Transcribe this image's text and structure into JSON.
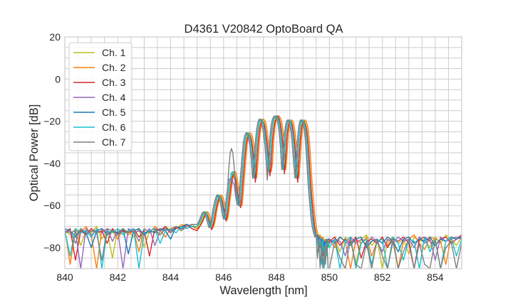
{
  "chart_data": {
    "type": "line",
    "title": "D4361 V20842 OptoBoard QA",
    "xlabel": "Wavelength [nm]",
    "ylabel": "Optical Power [dB]",
    "xlim": [
      840,
      855
    ],
    "ylim": [
      -90,
      20
    ],
    "xticks": [
      "840",
      "842",
      "844",
      "846",
      "848",
      "850",
      "852",
      "854"
    ],
    "xtick_values": [
      840,
      842,
      844,
      846,
      848,
      850,
      852,
      854
    ],
    "yticks": [
      "20",
      "0",
      "−20",
      "−40",
      "−60",
      "−80"
    ],
    "ytick_values": [
      20,
      0,
      -20,
      -40,
      -60,
      -80
    ],
    "grid": true,
    "grid_color": "#cccccc",
    "legend_position": "upper-left",
    "x": [
      840,
      840.2,
      840.4,
      840.6,
      840.8,
      841,
      841.2,
      841.4,
      841.6,
      841.8,
      842,
      842.2,
      842.4,
      842.6,
      842.8,
      843,
      843.2,
      843.4,
      843.6,
      843.8,
      844,
      844.2,
      844.4,
      844.6,
      844.8,
      845,
      845.05,
      845.1,
      845.15,
      845.2,
      845.25,
      845.3,
      845.35,
      845.4,
      845.45,
      845.5,
      845.55,
      845.6,
      845.65,
      845.7,
      845.75,
      845.8,
      845.85,
      845.9,
      845.95,
      846,
      846.05,
      846.1,
      846.15,
      846.2,
      846.25,
      846.3,
      846.35,
      846.4,
      846.45,
      846.5,
      846.55,
      846.6,
      846.65,
      846.7,
      846.75,
      846.8,
      846.85,
      846.9,
      846.95,
      847,
      847.05,
      847.1,
      847.15,
      847.2,
      847.25,
      847.3,
      847.35,
      847.4,
      847.45,
      847.5,
      847.55,
      847.6,
      847.65,
      847.7,
      847.75,
      847.8,
      847.85,
      847.9,
      847.95,
      848,
      848.05,
      848.1,
      848.15,
      848.2,
      848.25,
      848.3,
      848.35,
      848.4,
      848.45,
      848.5,
      848.55,
      848.6,
      848.65,
      848.7,
      848.75,
      848.8,
      848.85,
      848.9,
      848.95,
      849,
      849.05,
      849.1,
      849.15,
      849.2,
      849.25,
      849.3,
      849.35,
      849.4,
      849.45,
      849.5,
      849.55,
      849.6,
      849.65,
      849.7,
      849.75,
      849.8,
      849.85,
      849.9,
      849.95,
      850,
      850.2,
      850.4,
      850.6,
      850.8,
      851,
      851.2,
      851.4,
      851.6,
      851.8,
      852,
      852.2,
      852.4,
      852.6,
      852.8,
      853,
      853.2,
      853.4,
      853.6,
      853.8,
      854,
      854.2,
      854.4,
      854.6,
      854.8,
      855
    ],
    "series": [
      {
        "name": "Ch. 1",
        "color": "#bcbd22",
        "y": [
          -72,
          -74,
          -71,
          -79,
          -72,
          -73,
          -70,
          -76,
          -72,
          -85,
          -71,
          -73,
          -72,
          -75,
          -71,
          -80,
          -72,
          -71,
          -74,
          -70,
          -72,
          -71,
          -69,
          -70,
          -69,
          -71,
          -70,
          -69,
          -68,
          -66.5,
          -65,
          -63.5,
          -63,
          -64,
          -66,
          -68.5,
          -70.5,
          -69,
          -66,
          -62,
          -59,
          -56.5,
          -55,
          -55.5,
          -57,
          -60,
          -64,
          -66.5,
          -63,
          -57,
          -52,
          -47.5,
          -44.5,
          -44,
          -46,
          -50,
          -55,
          -59,
          -60,
          -53,
          -45,
          -37,
          -30,
          -27,
          -25.5,
          -26,
          -28,
          -32,
          -38,
          -47,
          -40,
          -30,
          -24,
          -20.5,
          -19,
          -19.5,
          -21,
          -25,
          -30,
          -37,
          -44,
          -40,
          -28,
          -22,
          -19,
          -17.8,
          -17.5,
          -18.5,
          -20.5,
          -25,
          -32,
          -43,
          -36,
          -26,
          -21.5,
          -19.5,
          -19.5,
          -21,
          -25,
          -31,
          -40,
          -47,
          -38,
          -28,
          -22,
          -19.5,
          -19.5,
          -21,
          -24,
          -30,
          -40,
          -50,
          -58,
          -65,
          -70,
          -73,
          -75,
          -74,
          -76,
          -75,
          -78,
          -76,
          -79,
          -77,
          -80,
          -78,
          -76,
          -82,
          -75,
          -77,
          -88,
          -76,
          -74,
          -79,
          -76,
          -90,
          -77,
          -75,
          -78,
          -76,
          -83,
          -75,
          -77,
          -76,
          -80,
          -75,
          -78,
          -74,
          -76,
          -79,
          -75
        ]
      },
      {
        "name": "Ch. 2",
        "color": "#ff7f0e",
        "y": [
          -71,
          -88,
          -72,
          -73,
          -70,
          -74,
          -90,
          -71,
          -73,
          -72,
          -76,
          -71,
          -74,
          -72,
          -82,
          -71,
          -73,
          -70,
          -72,
          -75,
          -71,
          -70,
          -72,
          -69,
          -70,
          -71,
          -70.5,
          -70,
          -69,
          -68,
          -66.5,
          -65,
          -63.5,
          -63,
          -64,
          -66,
          -68.5,
          -70.5,
          -69,
          -66,
          -62,
          -59,
          -56.5,
          -55,
          -55.5,
          -57,
          -60,
          -64,
          -66.5,
          -63,
          -57,
          -52,
          -47.5,
          -44.5,
          -44,
          -46,
          -50,
          -55,
          -59,
          -60,
          -53,
          -45,
          -37,
          -30,
          -27,
          -25.5,
          -26,
          -28,
          -32,
          -38,
          -47,
          -40,
          -30,
          -24,
          -20.5,
          -19,
          -19.5,
          -21,
          -25,
          -30,
          -37,
          -44,
          -40,
          -28,
          -22,
          -19,
          -17.8,
          -17.5,
          -18.5,
          -20.5,
          -25,
          -32,
          -43,
          -36,
          -26,
          -21.5,
          -19.5,
          -19.5,
          -21,
          -25,
          -31,
          -40,
          -47,
          -38,
          -28,
          -22,
          -19.5,
          -19.5,
          -21,
          -24,
          -30,
          -40,
          -50,
          -58,
          -65,
          -70,
          -73,
          -75,
          -74,
          -76,
          -75,
          -78,
          -76,
          -79,
          -77,
          -76,
          -80,
          -75,
          -77,
          -90,
          -76,
          -78,
          -75,
          -84,
          -77,
          -76,
          -79,
          -75,
          -90,
          -77,
          -76,
          -74,
          -78,
          -81,
          -75,
          -76,
          -77,
          -88,
          -75,
          -76,
          -74
        ]
      },
      {
        "name": "Ch. 3",
        "color": "#d62728",
        "y": [
          -73,
          -71,
          -86,
          -72,
          -74,
          -71,
          -73,
          -72,
          -78,
          -71,
          -74,
          -72,
          -73,
          -71,
          -75,
          -72,
          -84,
          -71,
          -72,
          -70,
          -73,
          -71,
          -70,
          -69,
          -71,
          -72,
          -71,
          -70,
          -69,
          -67.5,
          -66,
          -64.5,
          -64,
          -65,
          -67,
          -69.5,
          -71.5,
          -70,
          -67,
          -63,
          -60,
          -57.5,
          -56,
          -56.5,
          -58,
          -61,
          -65,
          -67.5,
          -64,
          -58,
          -53,
          -48.5,
          -45.5,
          -45,
          -47,
          -51,
          -56,
          -60,
          -61,
          -54,
          -46,
          -38,
          -31,
          -28,
          -26.5,
          -27,
          -29,
          -33,
          -39,
          -49,
          -41,
          -31,
          -25,
          -21.5,
          -20,
          -20.5,
          -22,
          -26,
          -31,
          -38,
          -46,
          -41,
          -29,
          -23,
          -20,
          -18.8,
          -17.5,
          -19,
          -21.5,
          -26,
          -33,
          -45,
          -37,
          -27,
          -22,
          -20.5,
          -20.5,
          -22,
          -26,
          -32,
          -42,
          -49,
          -39,
          -29,
          -23,
          -20.5,
          -20.5,
          -22,
          -25,
          -31,
          -41,
          -51,
          -59,
          -66,
          -71,
          -74,
          -77,
          -75,
          -80,
          -76,
          -84,
          -77,
          -82,
          -78,
          -79,
          -77,
          -75,
          -79,
          -76,
          -78,
          -75,
          -85,
          -77,
          -76,
          -78,
          -75,
          -80,
          -76,
          -77,
          -75,
          -78,
          -90,
          -76,
          -75,
          -77,
          -79,
          -76,
          -75,
          -78,
          -76,
          -74
        ]
      },
      {
        "name": "Ch. 4",
        "color": "#9467bd",
        "y": [
          -72,
          -73,
          -72,
          -90,
          -71,
          -74,
          -72,
          -73,
          -71,
          -77,
          -72,
          -90,
          -71,
          -73,
          -72,
          -74,
          -71,
          -79,
          -72,
          -71,
          -73,
          -70,
          -71,
          -70,
          -69,
          -69,
          -68,
          -66.5,
          -65,
          -63.5,
          -63,
          -64,
          -66,
          -68.5,
          -70.5,
          -69,
          -66,
          -62,
          -59,
          -56.5,
          -55,
          -55.5,
          -57,
          -60,
          -64,
          -66.5,
          -63,
          -57,
          -52,
          -47.5,
          -48,
          -47,
          -49,
          -50,
          -55,
          -59,
          -60,
          -53,
          -45,
          -37,
          -30,
          -27,
          -25.5,
          -26,
          -28,
          -32,
          -38,
          -47,
          -40,
          -30,
          -24,
          -20.5,
          -19,
          -19.5,
          -21,
          -25,
          -30,
          -37,
          -44,
          -40,
          -28,
          -22,
          -19,
          -17.8,
          -17.5,
          -18.5,
          -20.5,
          -25,
          -32,
          -43,
          -36,
          -26,
          -21.5,
          -19.5,
          -19.5,
          -21,
          -25,
          -31,
          -40,
          -47,
          -38,
          -28,
          -22,
          -19.5,
          -19.5,
          -21,
          -24,
          -30,
          -40,
          -50,
          -58,
          -65,
          -70,
          -73,
          -75,
          -74,
          -76,
          -75,
          -78,
          -76,
          -79,
          -77,
          -80,
          -76,
          -78,
          -78,
          -76,
          -77,
          -84,
          -75,
          -78,
          -76,
          -79,
          -75,
          -77,
          -82,
          -76,
          -78,
          -75,
          -77,
          -76,
          -80,
          -75,
          -78,
          -76,
          -86,
          -75,
          -77,
          -76,
          -75,
          -76
        ]
      },
      {
        "name": "Ch. 5",
        "color": "#1f77b4",
        "y": [
          -71,
          -72,
          -75,
          -71,
          -73,
          -80,
          -72,
          -71,
          -74,
          -72,
          -73,
          -71,
          -83,
          -72,
          -71,
          -74,
          -72,
          -73,
          -71,
          -72,
          -76,
          -70,
          -71,
          -69,
          -70,
          -70,
          -69,
          -68,
          -66.5,
          -65,
          -63.5,
          -63,
          -64,
          -66,
          -68.5,
          -70.5,
          -69,
          -66,
          -62,
          -59,
          -56.5,
          -55,
          -55.5,
          -57,
          -60,
          -64,
          -66.5,
          -63,
          -57,
          -52,
          -47.5,
          -44.5,
          -44,
          -46,
          -50,
          -55,
          -59,
          -60,
          -53,
          -45,
          -37,
          -30,
          -27,
          -25.5,
          -26,
          -28,
          -32,
          -38,
          -47,
          -40,
          -30,
          -24,
          -20.5,
          -19,
          -19.5,
          -21,
          -25,
          -30,
          -37,
          -44,
          -40,
          -28,
          -22,
          -19,
          -17.8,
          -17.5,
          -18.5,
          -20.5,
          -25,
          -32,
          -43,
          -36,
          -26,
          -21.5,
          -19.5,
          -19.5,
          -21,
          -25,
          -31,
          -40,
          -47,
          -38,
          -28,
          -22,
          -19.5,
          -19.5,
          -21,
          -24,
          -30,
          -40,
          -50,
          -58,
          -65,
          -70,
          -73,
          -75,
          -74,
          -76,
          -75,
          -78,
          -76,
          -79,
          -77,
          -80,
          -76,
          -76,
          -78,
          -75,
          -77,
          -79,
          -76,
          -75,
          -80,
          -77,
          -76,
          -78,
          -75,
          -77,
          -82,
          -76,
          -75,
          -78,
          -76,
          -77,
          -75,
          -79,
          -76,
          -77,
          -75,
          -76,
          -75
        ]
      },
      {
        "name": "Ch. 6",
        "color": "#17becf",
        "y": [
          -72,
          -84,
          -71,
          -73,
          -72,
          -75,
          -71,
          -90,
          -72,
          -73,
          -71,
          -74,
          -72,
          -71,
          -90,
          -73,
          -72,
          -71,
          -78,
          -72,
          -71,
          -73,
          -70,
          -71,
          -70,
          -70,
          -69,
          -68,
          -66.5,
          -65,
          -63.5,
          -63,
          -64,
          -66,
          -68.5,
          -70.5,
          -69,
          -66,
          -62,
          -59,
          -56.5,
          -55,
          -55.5,
          -57,
          -60,
          -64,
          -66.5,
          -63,
          -57,
          -52,
          -47.5,
          -44.5,
          -44,
          -46,
          -50,
          -55,
          -59,
          -60,
          -53,
          -45,
          -37,
          -30,
          -27,
          -25.5,
          -26,
          -28,
          -32,
          -38,
          -47,
          -40,
          -30,
          -24,
          -20.5,
          -19,
          -19.5,
          -21,
          -25,
          -30,
          -37,
          -44,
          -40,
          -28,
          -22,
          -19,
          -17.8,
          -17.5,
          -18.5,
          -20.5,
          -25,
          -32,
          -43,
          -36,
          -26,
          -21.5,
          -19.5,
          -19.5,
          -21,
          -25,
          -31,
          -40,
          -47,
          -38,
          -28,
          -22,
          -19.5,
          -19.5,
          -21,
          -24,
          -30,
          -40,
          -50,
          -58,
          -65,
          -70,
          -73,
          -74,
          -77,
          -82,
          -75,
          -88,
          -76,
          -90,
          -78,
          -84,
          -77,
          -80,
          -76,
          -90,
          -77,
          -75,
          -90,
          -78,
          -76,
          -88,
          -77,
          -76,
          -90,
          -75,
          -78,
          -86,
          -76,
          -77,
          -90,
          -75,
          -82,
          -76,
          -90,
          -77,
          -75,
          -84,
          -76
        ]
      },
      {
        "name": "Ch. 7",
        "color": "#7f7f7f",
        "y": [
          -73,
          -72,
          -78,
          -71,
          -74,
          -72,
          -73,
          -86,
          -71,
          -72,
          -74,
          -71,
          -73,
          -72,
          -77,
          -71,
          -73,
          -72,
          -74,
          -71,
          -72,
          -70,
          -72,
          -70,
          -69,
          -69,
          -68,
          -66.5,
          -65,
          -63.5,
          -63,
          -64,
          -66,
          -68.5,
          -70.5,
          -69,
          -66,
          -62,
          -59,
          -56.5,
          -55,
          -55.5,
          -57,
          -60,
          -64,
          -66.5,
          -63,
          -57,
          -52,
          -42,
          -35,
          -33,
          -35,
          -42,
          -52,
          -59,
          -60,
          -53,
          -45,
          -37,
          -30,
          -27,
          -25.5,
          -26,
          -28,
          -32,
          -38,
          -47,
          -40,
          -30,
          -24,
          -20.5,
          -19,
          -19.5,
          -21,
          -25,
          -30,
          -37,
          -48,
          -40,
          -28,
          -22,
          -19,
          -17.8,
          -17.5,
          -18.5,
          -20.5,
          -25,
          -32,
          -43,
          -36,
          -26,
          -21.5,
          -19.5,
          -19.5,
          -21,
          -25,
          -31,
          -40,
          -47,
          -38,
          -28,
          -22,
          -19.5,
          -19.5,
          -21,
          -24,
          -30,
          -40,
          -50,
          -58,
          -65,
          -70,
          -73,
          -75,
          -74,
          -85,
          -76,
          -90,
          -77,
          -90,
          -80,
          -88,
          -76,
          -90,
          -90,
          -77,
          -85,
          -90,
          -76,
          -88,
          -90,
          -78,
          -90,
          -76,
          -84,
          -90,
          -77,
          -90,
          -82,
          -76,
          -90,
          -78,
          -88,
          -90,
          -76,
          -90,
          -80,
          -77,
          -90,
          -78
        ]
      }
    ]
  }
}
